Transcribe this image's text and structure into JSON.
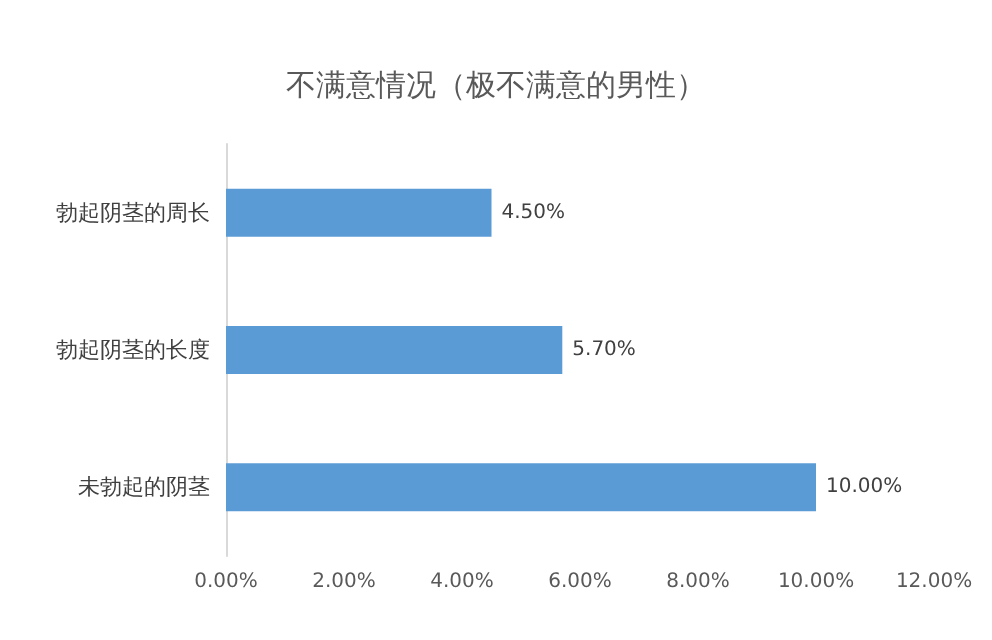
{
  "chart_data": {
    "type": "bar",
    "orientation": "horizontal",
    "title": "不满意情况（极不满意的男性）",
    "categories": [
      "勃起阴茎的周长",
      "勃起阴茎的长度",
      "未勃起的阴茎"
    ],
    "values": [
      4.5,
      5.7,
      10.0
    ],
    "value_labels": [
      "4.50%",
      "5.70%",
      "10.00%"
    ],
    "color": "#5b9bd5",
    "xlim": [
      0,
      12
    ],
    "xticks": [
      {
        "value": 0,
        "label": "0.00%"
      },
      {
        "value": 2,
        "label": "2.00%"
      },
      {
        "value": 4,
        "label": "4.00%"
      },
      {
        "value": 6,
        "label": "6.00%"
      },
      {
        "value": 8,
        "label": "8.00%"
      },
      {
        "value": 10,
        "label": "10.00%"
      },
      {
        "value": 12,
        "label": "12.00%"
      }
    ],
    "grid": false
  }
}
